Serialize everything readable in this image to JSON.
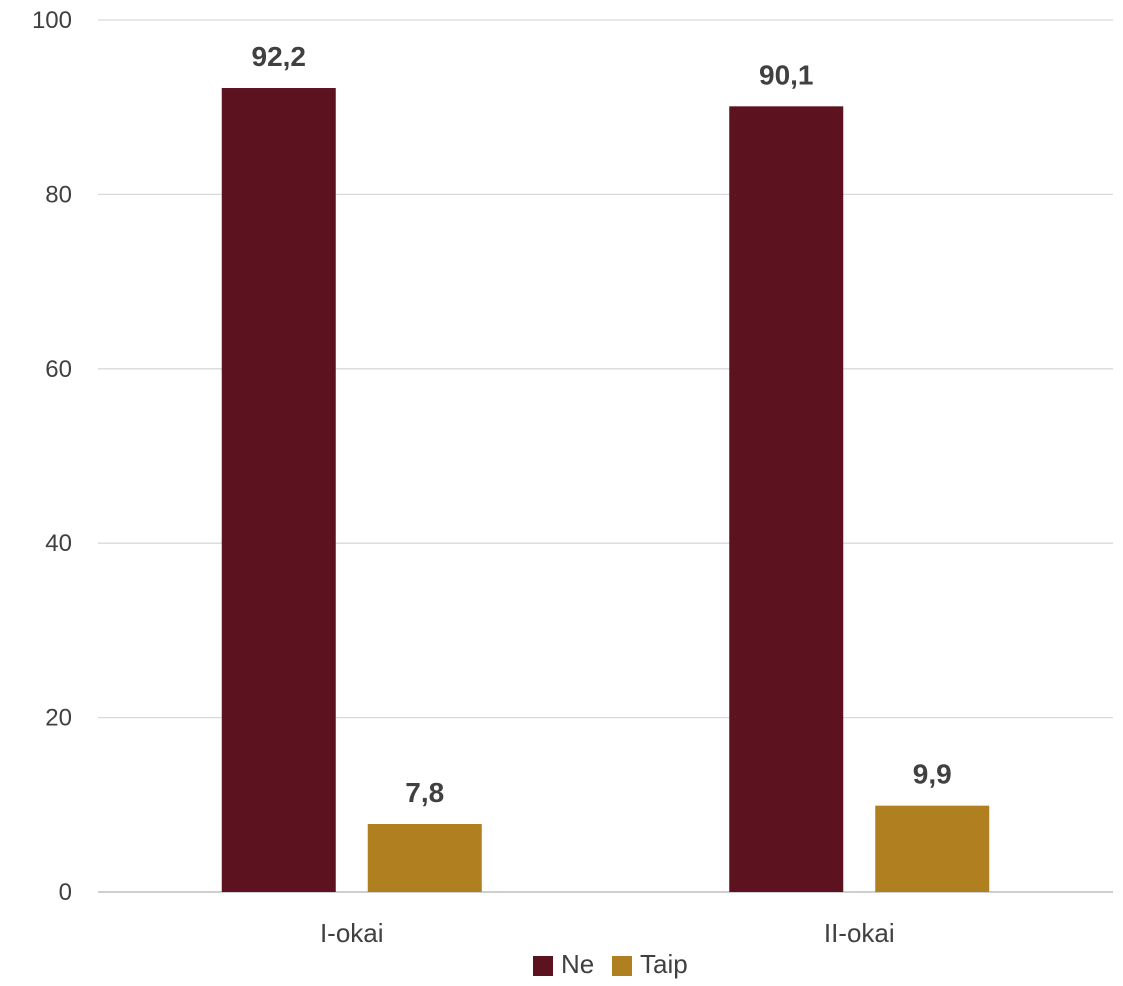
{
  "chart_data": {
    "type": "bar",
    "categories": [
      "I-okai",
      "II-okai"
    ],
    "series": [
      {
        "name": "Ne",
        "values": [
          92.2,
          90.1
        ],
        "labels": [
          "92,2",
          "90,1"
        ],
        "color": "#5c121f"
      },
      {
        "name": "Taip",
        "values": [
          7.8,
          9.9
        ],
        "labels": [
          "7,8",
          "9,9"
        ],
        "color": "#b07f20"
      }
    ],
    "ylim": [
      0,
      100
    ],
    "yticks": [
      0,
      20,
      40,
      60,
      80,
      100
    ],
    "grid": true,
    "legend": "bottom-center",
    "title": "",
    "xlabel": "",
    "ylabel": ""
  }
}
